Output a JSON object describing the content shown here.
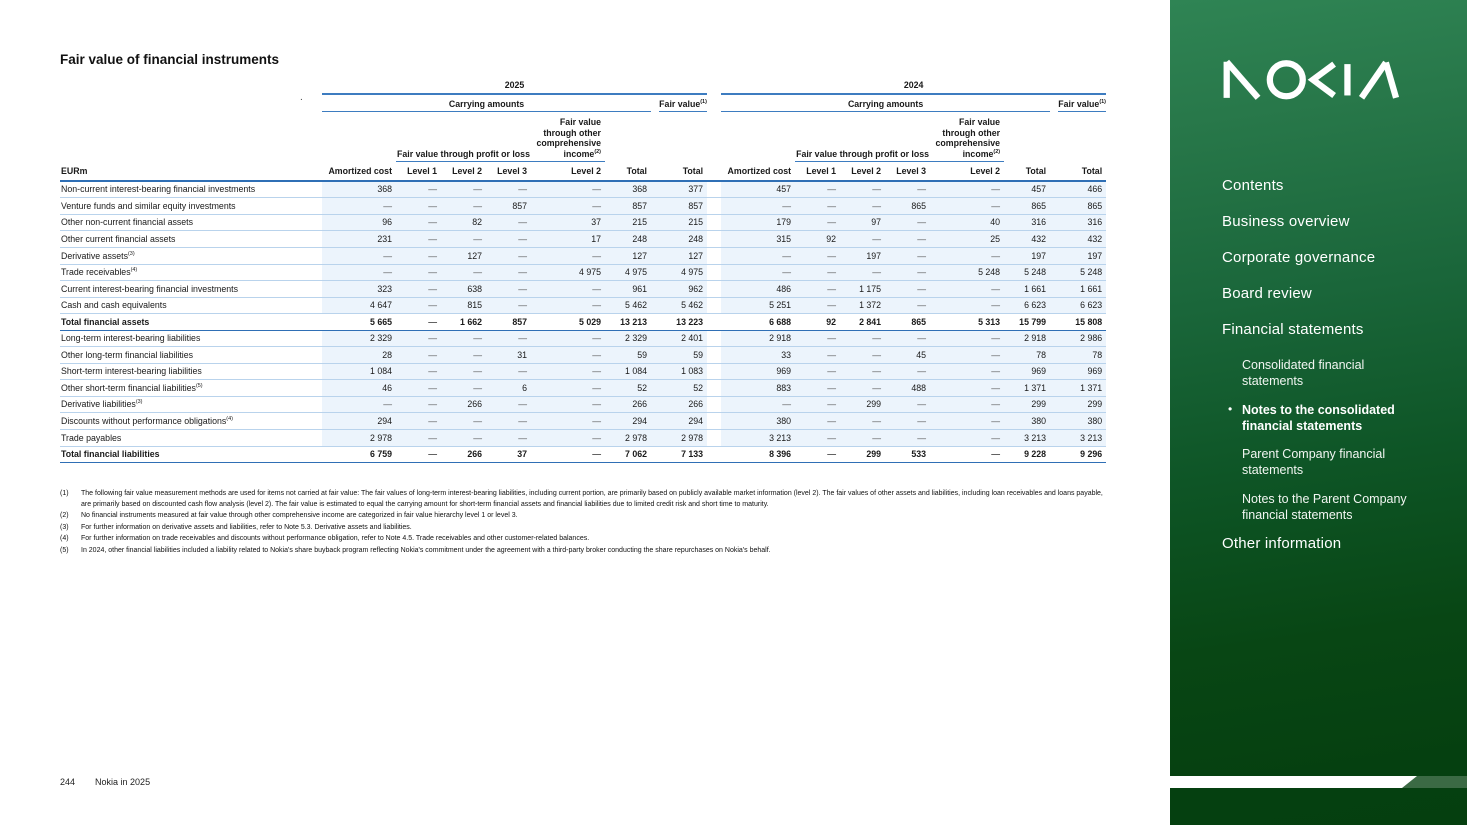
{
  "page": {
    "title": "Fair value of financial instruments",
    "stray_mark": ".",
    "footer": {
      "page_number": "244",
      "doc_title": "Nokia in 2025"
    }
  },
  "table": {
    "unit_label": "EURm",
    "years": [
      "2025",
      "2024"
    ],
    "group_headers": {
      "carrying": "Carrying amounts",
      "fair_value": "Fair value",
      "fair_value_sup": "(1)",
      "fvtpl": "Fair value through profit or loss",
      "fvoci_lines": [
        "Fair value",
        "through other",
        "comprehensive"
      ],
      "fvoci_last": "income",
      "fvoci_sup": "(2)"
    },
    "columns": [
      "Amortized cost",
      "Level 1",
      "Level 2",
      "Level 3",
      "Level 2",
      "Total",
      "Total"
    ],
    "rows": [
      {
        "label": "Non-current interest-bearing financial investments",
        "sup": "",
        "bold": false,
        "y2025": [
          "368",
          "—",
          "—",
          "—",
          "—",
          "368",
          "377"
        ],
        "y2024": [
          "457",
          "—",
          "—",
          "—",
          "—",
          "457",
          "466"
        ]
      },
      {
        "label": "Venture funds and similar equity investments",
        "sup": "",
        "bold": false,
        "y2025": [
          "—",
          "—",
          "—",
          "857",
          "—",
          "857",
          "857"
        ],
        "y2024": [
          "—",
          "—",
          "—",
          "865",
          "—",
          "865",
          "865"
        ]
      },
      {
        "label": "Other non-current financial assets",
        "sup": "",
        "bold": false,
        "y2025": [
          "96",
          "—",
          "82",
          "—",
          "37",
          "215",
          "215"
        ],
        "y2024": [
          "179",
          "—",
          "97",
          "—",
          "40",
          "316",
          "316"
        ]
      },
      {
        "label": "Other current financial assets",
        "sup": "",
        "bold": false,
        "y2025": [
          "231",
          "—",
          "—",
          "—",
          "17",
          "248",
          "248"
        ],
        "y2024": [
          "315",
          "92",
          "—",
          "—",
          "25",
          "432",
          "432"
        ]
      },
      {
        "label": "Derivative assets",
        "sup": "(3)",
        "bold": false,
        "y2025": [
          "—",
          "—",
          "127",
          "—",
          "—",
          "127",
          "127"
        ],
        "y2024": [
          "—",
          "—",
          "197",
          "—",
          "—",
          "197",
          "197"
        ]
      },
      {
        "label": "Trade receivables",
        "sup": "(4)",
        "bold": false,
        "y2025": [
          "—",
          "—",
          "—",
          "—",
          "4 975",
          "4 975",
          "4 975"
        ],
        "y2024": [
          "—",
          "—",
          "—",
          "—",
          "5 248",
          "5 248",
          "5 248"
        ]
      },
      {
        "label": "Current interest-bearing financial investments",
        "sup": "",
        "bold": false,
        "y2025": [
          "323",
          "—",
          "638",
          "—",
          "—",
          "961",
          "962"
        ],
        "y2024": [
          "486",
          "—",
          "1 175",
          "—",
          "—",
          "1 661",
          "1 661"
        ]
      },
      {
        "label": "Cash and cash equivalents",
        "sup": "",
        "bold": false,
        "y2025": [
          "4 647",
          "—",
          "815",
          "—",
          "—",
          "5 462",
          "5 462"
        ],
        "y2024": [
          "5 251",
          "—",
          "1 372",
          "—",
          "—",
          "6 623",
          "6 623"
        ]
      },
      {
        "label": "Total financial assets",
        "sup": "",
        "bold": true,
        "y2025": [
          "5 665",
          "—",
          "1 662",
          "857",
          "5 029",
          "13 213",
          "13 223"
        ],
        "y2024": [
          "6 688",
          "92",
          "2 841",
          "865",
          "5 313",
          "15 799",
          "15 808"
        ]
      },
      {
        "label": "Long-term interest-bearing liabilities",
        "sup": "",
        "bold": false,
        "y2025": [
          "2 329",
          "—",
          "—",
          "—",
          "—",
          "2 329",
          "2 401"
        ],
        "y2024": [
          "2 918",
          "—",
          "—",
          "—",
          "—",
          "2 918",
          "2 986"
        ]
      },
      {
        "label": "Other long-term financial liabilities",
        "sup": "",
        "bold": false,
        "y2025": [
          "28",
          "—",
          "—",
          "31",
          "—",
          "59",
          "59"
        ],
        "y2024": [
          "33",
          "—",
          "—",
          "45",
          "—",
          "78",
          "78"
        ]
      },
      {
        "label": "Short-term interest-bearing liabilities",
        "sup": "",
        "bold": false,
        "y2025": [
          "1 084",
          "—",
          "—",
          "—",
          "—",
          "1 084",
          "1 083"
        ],
        "y2024": [
          "969",
          "—",
          "—",
          "—",
          "—",
          "969",
          "969"
        ]
      },
      {
        "label": "Other short-term financial liabilities",
        "sup": "(5)",
        "bold": false,
        "y2025": [
          "46",
          "—",
          "—",
          "6",
          "—",
          "52",
          "52"
        ],
        "y2024": [
          "883",
          "—",
          "—",
          "488",
          "—",
          "1 371",
          "1 371"
        ]
      },
      {
        "label": "Derivative liabilities",
        "sup": "(3)",
        "bold": false,
        "y2025": [
          "—",
          "—",
          "266",
          "—",
          "—",
          "266",
          "266"
        ],
        "y2024": [
          "—",
          "—",
          "299",
          "—",
          "—",
          "299",
          "299"
        ]
      },
      {
        "label": "Discounts without performance obligations",
        "sup": "(4)",
        "bold": false,
        "y2025": [
          "294",
          "—",
          "—",
          "—",
          "—",
          "294",
          "294"
        ],
        "y2024": [
          "380",
          "—",
          "—",
          "—",
          "—",
          "380",
          "380"
        ]
      },
      {
        "label": "Trade payables",
        "sup": "",
        "bold": false,
        "y2025": [
          "2 978",
          "—",
          "—",
          "—",
          "—",
          "2 978",
          "2 978"
        ],
        "y2024": [
          "3 213",
          "—",
          "—",
          "—",
          "—",
          "3 213",
          "3 213"
        ]
      },
      {
        "label": "Total financial liabilities",
        "sup": "",
        "bold": true,
        "y2025": [
          "6 759",
          "—",
          "266",
          "37",
          "—",
          "7 062",
          "7 133"
        ],
        "y2024": [
          "8 396",
          "—",
          "299",
          "533",
          "—",
          "9 228",
          "9 296"
        ]
      }
    ]
  },
  "footnotes": [
    {
      "num": "(1)",
      "text": "The following fair value measurement methods are used for items not carried at fair value: The fair values of long-term interest-bearing liabilities, including current portion, are primarily based on publicly available market information (level 2). The fair values of other assets and liabilities, including loan receivables and loans payable, are primarily based on discounted cash flow analysis (level 2). The fair value is estimated to equal the carrying amount for short-term financial assets and financial liabilities due to limited credit risk and short time to maturity."
    },
    {
      "num": "(2)",
      "text": "No financial instruments measured at fair value through other comprehensive income are categorized in fair value hierarchy level 1 or level 3."
    },
    {
      "num": "(3)",
      "text": "For further information on derivative assets and liabilities, refer to Note 5.3. Derivative assets and liabilities."
    },
    {
      "num": "(4)",
      "text": "For further information on trade receivables and discounts without performance obligation, refer to Note 4.5. Trade receivables and other customer-related balances."
    },
    {
      "num": "(5)",
      "text": "In 2024, other financial liabilities included a liability related to Nokia's share buyback program reflecting Nokia's commitment under the agreement with a third-party broker conducting the share repurchases on Nokia's behalf."
    }
  ],
  "sidebar": {
    "logo_name": "NOKIA",
    "colors": {
      "green_top": "#2f8454",
      "green_bottom": "#053f0f",
      "accent_blue": "#2f6fb5",
      "light_blue_bg": "#ecf4fc"
    },
    "items": [
      {
        "label": "Contents",
        "level": 1,
        "active": false
      },
      {
        "label": "Business overview",
        "level": 1,
        "active": false
      },
      {
        "label": "Corporate governance",
        "level": 1,
        "active": false
      },
      {
        "label": "Board review",
        "level": 1,
        "active": false
      },
      {
        "label": "Financial statements",
        "level": 1,
        "active": false
      },
      {
        "label": "Consolidated financial statements",
        "level": 2,
        "active": false
      },
      {
        "label": "Notes to the consolidated financial statements",
        "level": 2,
        "active": true
      },
      {
        "label": "Parent Company financial statements",
        "level": 2,
        "active": false
      },
      {
        "label": "Notes to the Parent Company financial statements",
        "level": 2,
        "active": false
      },
      {
        "label": "Other information",
        "level": 1,
        "active": false
      }
    ]
  }
}
